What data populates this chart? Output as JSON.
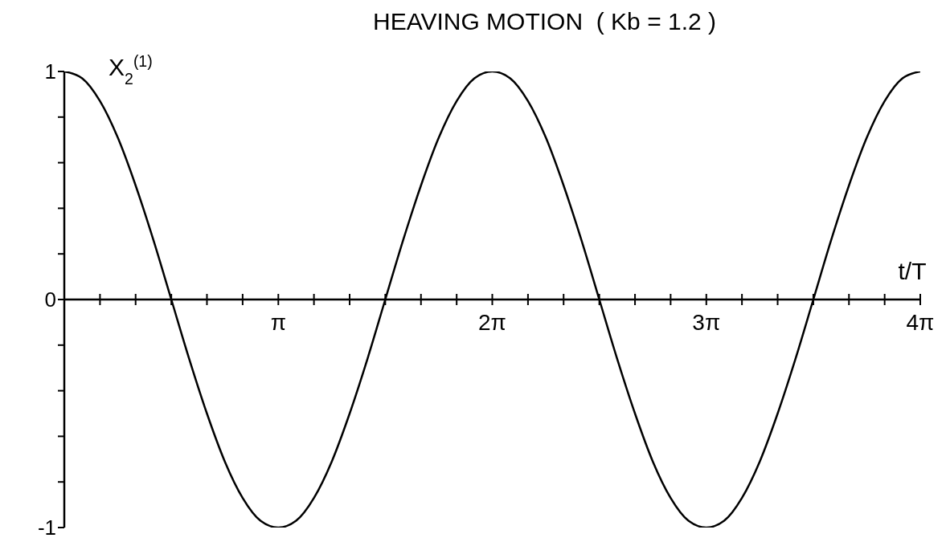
{
  "chart_data": {
    "type": "line",
    "title": "HEAVING MOTION  ( Kb = 1.2 )",
    "xlabel": "t/T",
    "ylabel": "X$_{2}$$^{(1)}$",
    "x": [
      0,
      0.262,
      0.524,
      0.785,
      1.047,
      1.309,
      1.571,
      1.833,
      2.094,
      2.356,
      2.618,
      2.88,
      3.142,
      3.403,
      3.665,
      3.927,
      4.189,
      4.451,
      4.712,
      4.974,
      5.236,
      5.498,
      5.76,
      6.021,
      6.283,
      6.545,
      6.807,
      7.069,
      7.33,
      7.592,
      7.854,
      8.116,
      8.378,
      8.639,
      8.901,
      9.163,
      9.425,
      9.687,
      9.948,
      10.21,
      10.472,
      10.734,
      10.996,
      11.257,
      11.519,
      11.781,
      12.043,
      12.305,
      12.566
    ],
    "series": [
      {
        "color": "#000000",
        "values": [
          1,
          0.97,
          0.87,
          0.71,
          0.5,
          0.26,
          0,
          -0.26,
          -0.5,
          -0.71,
          -0.87,
          -0.97,
          -1,
          -0.97,
          -0.87,
          -0.71,
          -0.5,
          -0.26,
          0,
          0.26,
          0.5,
          0.71,
          0.87,
          0.97,
          1,
          0.97,
          0.87,
          0.71,
          0.5,
          0.26,
          0,
          -0.26,
          -0.5,
          -0.71,
          -0.87,
          -0.97,
          -1,
          -0.97,
          -0.87,
          -0.71,
          -0.5,
          -0.26,
          0,
          0.26,
          0.5,
          0.71,
          0.87,
          0.97,
          1
        ]
      }
    ],
    "xlim": [
      0,
      12.566
    ],
    "xticks": [
      {
        "value": 0,
        "label": null
      },
      {
        "value": 0.524,
        "label": null
      },
      {
        "value": 1.047,
        "label": null
      },
      {
        "value": 1.571,
        "label": null
      },
      {
        "value": 2.094,
        "label": null
      },
      {
        "value": 2.618,
        "label": null
      },
      {
        "value": 3.142,
        "label": "π"
      },
      {
        "value": 3.665,
        "label": null
      },
      {
        "value": 4.189,
        "label": null
      },
      {
        "value": 4.712,
        "label": null
      },
      {
        "value": 5.236,
        "label": null
      },
      {
        "value": 5.76,
        "label": null
      },
      {
        "value": 6.283,
        "label": "2π"
      },
      {
        "value": 6.807,
        "label": null
      },
      {
        "value": 7.33,
        "label": null
      },
      {
        "value": 7.854,
        "label": null
      },
      {
        "value": 8.378,
        "label": null
      },
      {
        "value": 8.901,
        "label": null
      },
      {
        "value": 9.425,
        "label": "3π"
      },
      {
        "value": 9.948,
        "label": null
      },
      {
        "value": 10.472,
        "label": null
      },
      {
        "value": 10.996,
        "label": null
      },
      {
        "value": 11.519,
        "label": null
      },
      {
        "value": 12.043,
        "label": null
      },
      {
        "value": 12.566,
        "label": "4π"
      }
    ],
    "ylim": [
      -1,
      1
    ],
    "yticks": [
      1,
      {
        "value": 0.8,
        "label": null
      },
      {
        "value": 0.6,
        "label": null
      },
      {
        "value": 0.4,
        "label": null
      },
      {
        "value": 0.2,
        "label": null
      },
      0,
      {
        "value": -0.2,
        "label": null
      },
      {
        "value": -0.4,
        "label": null
      },
      {
        "value": -0.6,
        "label": null
      },
      {
        "value": -0.8,
        "label": null
      },
      -1
    ],
    "grid": false,
    "legend": false,
    "marker": "none",
    "line_style": "solid"
  }
}
